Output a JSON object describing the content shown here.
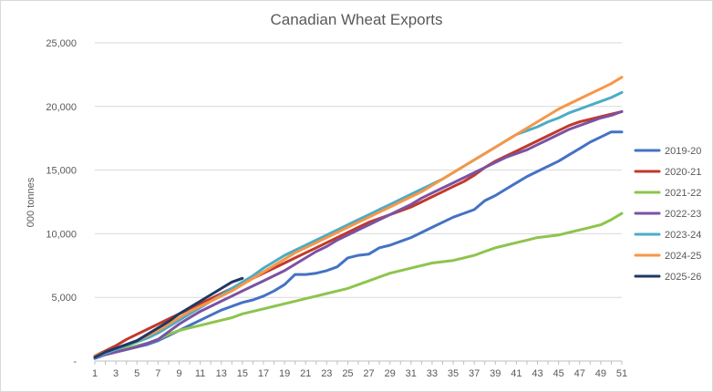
{
  "chart_data": {
    "type": "line",
    "title": "Canadian Wheat Exports",
    "xlabel": "",
    "ylabel": "000 tonnes",
    "x": [
      1,
      2,
      3,
      4,
      5,
      6,
      7,
      8,
      9,
      10,
      11,
      12,
      13,
      14,
      15,
      16,
      17,
      18,
      19,
      20,
      21,
      22,
      23,
      24,
      25,
      26,
      27,
      28,
      29,
      30,
      31,
      32,
      33,
      34,
      35,
      36,
      37,
      38,
      39,
      40,
      41,
      42,
      43,
      44,
      45,
      46,
      47,
      48,
      49,
      50,
      51
    ],
    "x_tick_labels": [
      "1",
      "3",
      "5",
      "7",
      "9",
      "11",
      "13",
      "15",
      "17",
      "19",
      "21",
      "23",
      "25",
      "27",
      "29",
      "31",
      "33",
      "35",
      "37",
      "39",
      "41",
      "43",
      "45",
      "47",
      "49",
      "51"
    ],
    "y_tick_labels": [
      "-",
      "5,000",
      "10,000",
      "15,000",
      "20,000",
      "25,000"
    ],
    "ylim": [
      0,
      25000
    ],
    "xlim": [
      1,
      51
    ],
    "grid": "horizontal",
    "legend_position": "right",
    "series": [
      {
        "name": "2019-20",
        "color": "#4472c4",
        "values": [
          200,
          500,
          700,
          900,
          1100,
          1300,
          1600,
          2000,
          2400,
          2800,
          3200,
          3600,
          4000,
          4300,
          4600,
          4800,
          5100,
          5500,
          6000,
          6800,
          6800,
          6900,
          7100,
          7400,
          8100,
          8300,
          8400,
          8900,
          9100,
          9400,
          9700,
          10100,
          10500,
          10900,
          11300,
          11600,
          11900,
          12600,
          13000,
          13500,
          14000,
          14500,
          14900,
          15300,
          15700,
          16200,
          16700,
          17200,
          17600,
          18000,
          18000
        ]
      },
      {
        "name": "2020-21",
        "color": "#c0392b",
        "values": [
          400,
          800,
          1200,
          1700,
          2100,
          2500,
          2900,
          3300,
          3700,
          4100,
          4500,
          4900,
          5300,
          5700,
          6100,
          6500,
          6900,
          7300,
          7700,
          8100,
          8500,
          8900,
          9300,
          9700,
          10100,
          10500,
          10900,
          11200,
          11500,
          11800,
          12100,
          12500,
          12900,
          13300,
          13700,
          14100,
          14600,
          15200,
          15700,
          16100,
          16500,
          16900,
          17300,
          17700,
          18100,
          18500,
          18800,
          19000,
          19200,
          19400,
          19600
        ]
      },
      {
        "name": "2021-22",
        "color": "#8ec44d",
        "values": [
          300,
          600,
          800,
          1000,
          1200,
          1400,
          1700,
          2100,
          2400,
          2600,
          2800,
          3000,
          3200,
          3400,
          3700,
          3900,
          4100,
          4300,
          4500,
          4700,
          4900,
          5100,
          5300,
          5500,
          5700,
          6000,
          6300,
          6600,
          6900,
          7100,
          7300,
          7500,
          7700,
          7800,
          7900,
          8100,
          8300,
          8600,
          8900,
          9100,
          9300,
          9500,
          9700,
          9800,
          9900,
          10100,
          10300,
          10500,
          10700,
          11100,
          11600
        ]
      },
      {
        "name": "2022-23",
        "color": "#7b52a3",
        "values": [
          300,
          500,
          700,
          900,
          1100,
          1400,
          1700,
          2300,
          2900,
          3400,
          3900,
          4300,
          4700,
          5100,
          5500,
          5900,
          6300,
          6700,
          7100,
          7600,
          8100,
          8600,
          9000,
          9500,
          9900,
          10300,
          10700,
          11100,
          11500,
          11900,
          12300,
          12800,
          13200,
          13600,
          14000,
          14400,
          14800,
          15200,
          15600,
          16000,
          16300,
          16600,
          17000,
          17400,
          17800,
          18200,
          18500,
          18800,
          19100,
          19300,
          19600
        ]
      },
      {
        "name": "2023-24",
        "color": "#4bacc6",
        "values": [
          300,
          600,
          900,
          1200,
          1500,
          1800,
          2200,
          2700,
          3200,
          3700,
          4200,
          4700,
          5200,
          5700,
          6200,
          6700,
          7300,
          7800,
          8300,
          8700,
          9100,
          9500,
          9900,
          10300,
          10700,
          11100,
          11500,
          11900,
          12300,
          12700,
          13100,
          13500,
          13900,
          14300,
          14800,
          15300,
          15800,
          16300,
          16800,
          17300,
          17800,
          18100,
          18400,
          18800,
          19100,
          19500,
          19800,
          20100,
          20400,
          20700,
          21100
        ]
      },
      {
        "name": "2024-25",
        "color": "#f79646",
        "values": [
          400,
          700,
          1000,
          1300,
          1600,
          2000,
          2400,
          2900,
          3400,
          3900,
          4300,
          4700,
          5100,
          5500,
          6000,
          6500,
          7000,
          7500,
          8000,
          8500,
          8900,
          9300,
          9700,
          10100,
          10500,
          10900,
          11300,
          11700,
          12100,
          12500,
          12900,
          13300,
          13800,
          14300,
          14800,
          15300,
          15800,
          16300,
          16800,
          17300,
          17800,
          18300,
          18800,
          19300,
          19800,
          20200,
          20600,
          21000,
          21400,
          21800,
          22300
        ]
      },
      {
        "name": "2025-26",
        "color": "#1f3864",
        "values": [
          300,
          700,
          1000,
          1300,
          1600,
          2100,
          2600,
          3100,
          3700,
          4200,
          4700,
          5200,
          5700,
          6200,
          6500,
          null,
          null,
          null,
          null,
          null,
          null,
          null,
          null,
          null,
          null,
          null,
          null,
          null,
          null,
          null,
          null,
          null,
          null,
          null,
          null,
          null,
          null,
          null,
          null,
          null,
          null,
          null,
          null,
          null,
          null,
          null,
          null,
          null,
          null,
          null,
          null
        ]
      }
    ]
  }
}
